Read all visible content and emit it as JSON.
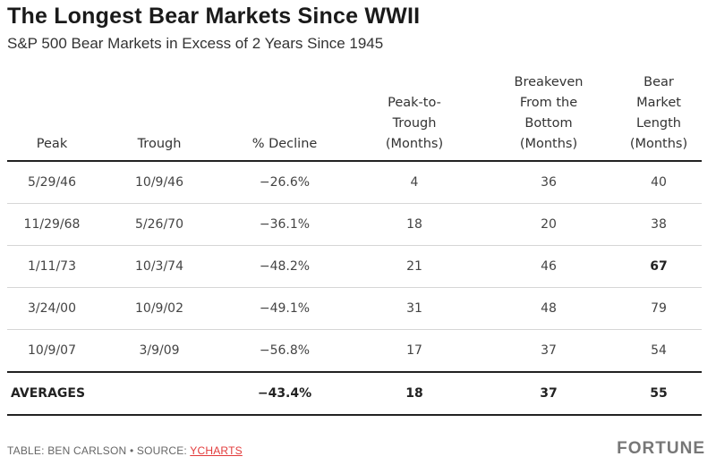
{
  "title": "The Longest Bear Markets Since WWII",
  "subtitle": "S&P 500 Bear Markets in Excess of 2 Years Since 1945",
  "columns": [
    [
      "Peak"
    ],
    [
      "Trough"
    ],
    [
      "% Decline"
    ],
    [
      "Peak-to-",
      "Trough",
      "(Months)"
    ],
    [
      "Breakeven",
      "From the",
      "Bottom",
      "(Months)"
    ],
    [
      "Bear",
      "Market",
      "Length",
      "(Months)"
    ]
  ],
  "rows": [
    [
      "5/29/46",
      "10/9/46",
      "−26.6%",
      "4",
      "36",
      "40"
    ],
    [
      "11/29/68",
      "5/26/70",
      "−36.1%",
      "18",
      "20",
      "38"
    ],
    [
      "1/11/73",
      "10/3/74",
      "−48.2%",
      "21",
      "46",
      "67"
    ],
    [
      "3/24/00",
      "10/9/02",
      "−49.1%",
      "31",
      "48",
      "79"
    ],
    [
      "10/9/07",
      "3/9/09",
      "−56.8%",
      "17",
      "37",
      "54"
    ]
  ],
  "bold_cells": [
    [
      2,
      5
    ]
  ],
  "averages": [
    "AVERAGES",
    "",
    "−43.4%",
    "18",
    "37",
    "55"
  ],
  "footer": {
    "prefix": "TABLE: BEN CARLSON • SOURCE: ",
    "source_link": "YCHARTS"
  },
  "logo": "FORTUNE",
  "colors": {
    "link": "#e23a3a",
    "rule": "#222222",
    "row_divider": "#d6d6d6"
  }
}
